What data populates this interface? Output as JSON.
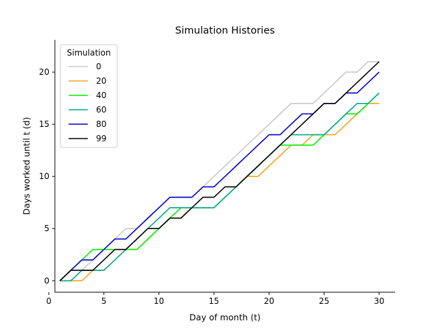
{
  "chart_data": {
    "type": "line",
    "title": "Simulation Histories",
    "xlabel": "Day of month (t)",
    "ylabel": "Days worked until t (d)",
    "xlim": [
      0.55,
      31.45
    ],
    "ylim": [
      -1.1,
      23.1
    ],
    "xticks": [
      0,
      5,
      10,
      15,
      20,
      25,
      30
    ],
    "yticks": [
      0,
      5,
      10,
      15,
      20
    ],
    "grid": false,
    "legend": {
      "title": "Simulation",
      "placement": "top-left"
    },
    "x": [
      1,
      2,
      3,
      4,
      5,
      6,
      7,
      8,
      9,
      10,
      11,
      12,
      13,
      14,
      15,
      16,
      17,
      18,
      19,
      20,
      21,
      22,
      23,
      24,
      25,
      26,
      27,
      28,
      29,
      30
    ],
    "series": [
      {
        "name": "0",
        "color": "#c8c8c8",
        "values": [
          0,
          0,
          1,
          2,
          3,
          4,
          5,
          5,
          6,
          7,
          8,
          8,
          8,
          9,
          10,
          11,
          12,
          13,
          14,
          15,
          16,
          17,
          17,
          17,
          18,
          19,
          20,
          20,
          21,
          21
        ]
      },
      {
        "name": "20",
        "color": "#f4a21a",
        "values": [
          0,
          0,
          0,
          1,
          1,
          2,
          3,
          3,
          4,
          5,
          6,
          6,
          7,
          7,
          7,
          8,
          9,
          10,
          10,
          11,
          12,
          13,
          13,
          14,
          14,
          14,
          15,
          16,
          17,
          17
        ]
      },
      {
        "name": "40",
        "color": "#00ee00",
        "values": [
          0,
          1,
          2,
          3,
          3,
          3,
          3,
          3,
          4,
          5,
          6,
          7,
          7,
          7,
          7,
          8,
          9,
          10,
          11,
          12,
          13,
          13,
          13,
          13,
          14,
          15,
          16,
          16,
          17,
          18
        ]
      },
      {
        "name": "60",
        "color": "#00aa88",
        "values": [
          0,
          0,
          1,
          1,
          1,
          2,
          3,
          4,
          5,
          6,
          7,
          7,
          7,
          7,
          7,
          8,
          9,
          10,
          11,
          12,
          13,
          14,
          14,
          14,
          14,
          15,
          16,
          17,
          17,
          18
        ]
      },
      {
        "name": "80",
        "color": "#0000cc",
        "values": [
          0,
          1,
          2,
          2,
          3,
          4,
          4,
          5,
          6,
          7,
          8,
          8,
          8,
          9,
          9,
          10,
          11,
          12,
          13,
          14,
          14,
          15,
          16,
          16,
          17,
          17,
          18,
          18,
          19,
          20
        ]
      },
      {
        "name": "99",
        "color": "#000000",
        "values": [
          0,
          1,
          1,
          1,
          2,
          3,
          3,
          4,
          5,
          5,
          6,
          6,
          7,
          8,
          8,
          9,
          9,
          10,
          11,
          12,
          13,
          14,
          15,
          16,
          17,
          17,
          18,
          19,
          20,
          21
        ]
      }
    ]
  }
}
